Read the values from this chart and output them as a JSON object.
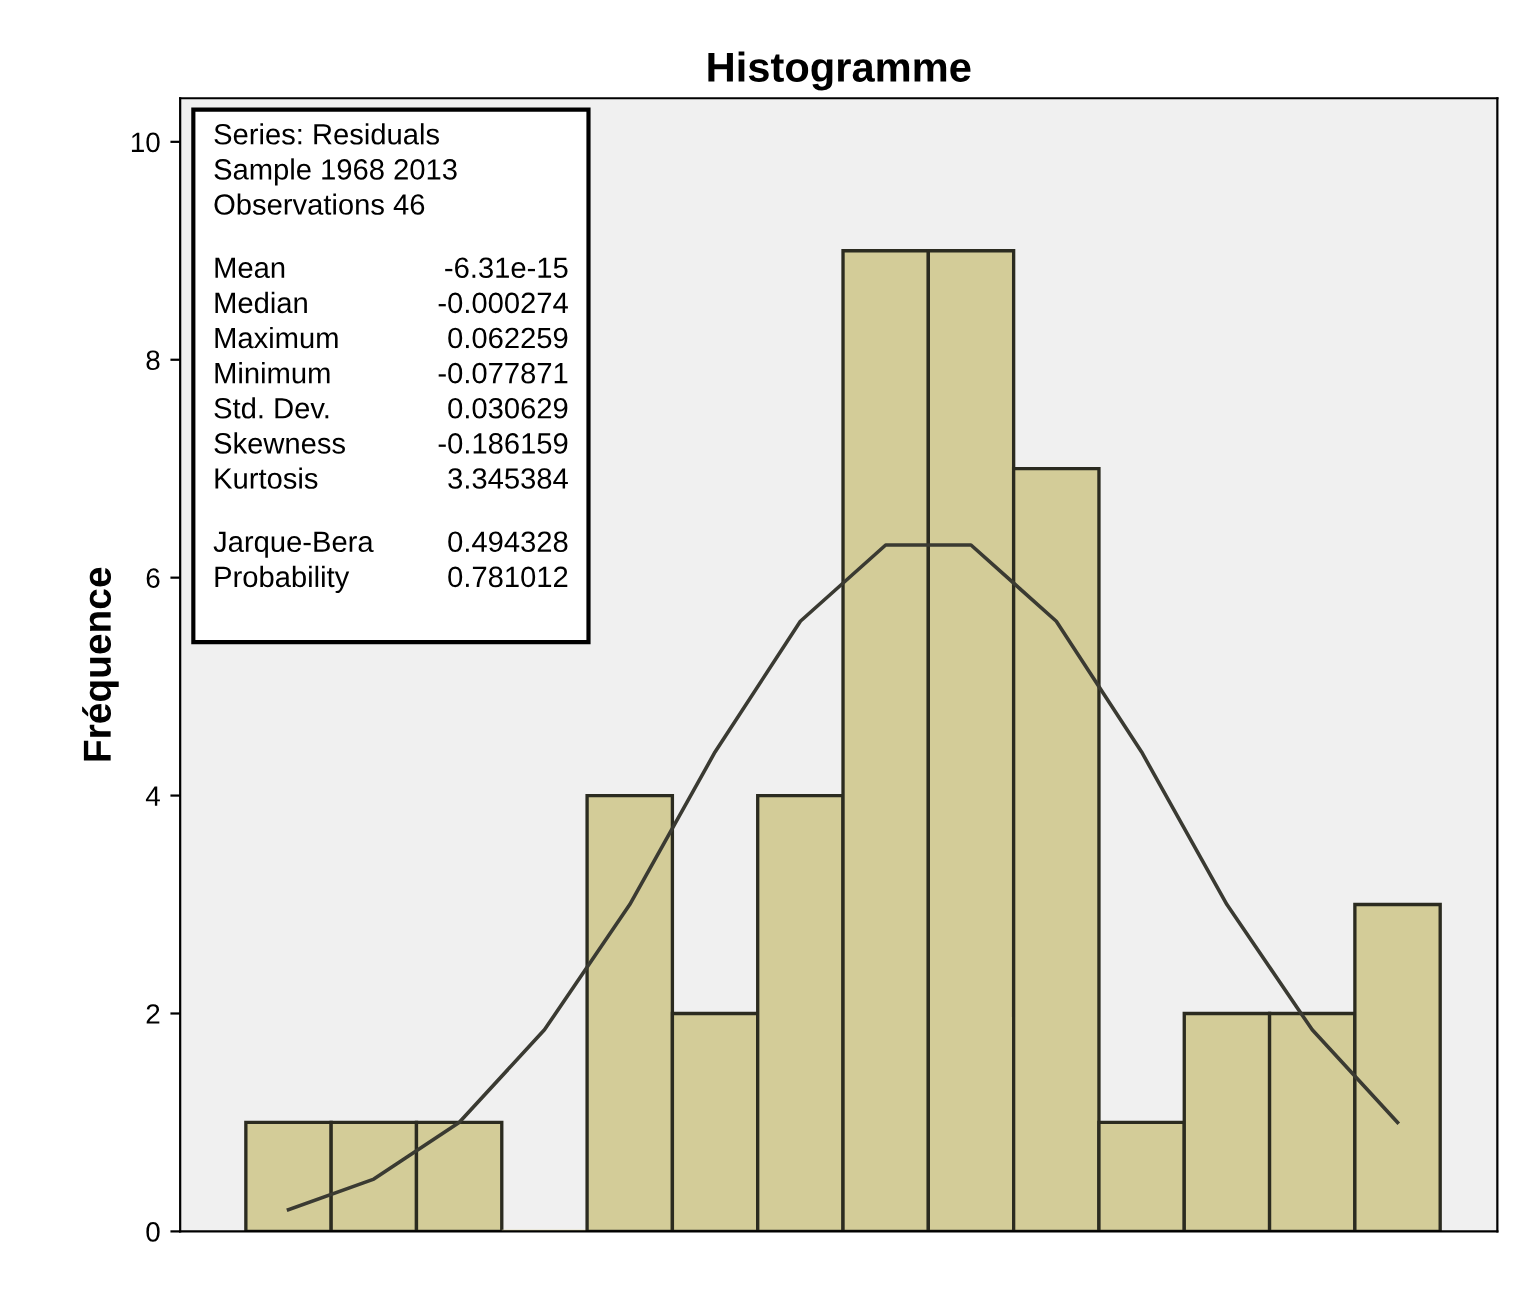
{
  "chart_data": {
    "type": "bar",
    "title": "Histogramme",
    "ylabel": "Fréquence",
    "categories": [
      null,
      null,
      null,
      null,
      null,
      null,
      null,
      null,
      null,
      null,
      null,
      null,
      null,
      null
    ],
    "series": [
      {
        "color": "#d3cc98",
        "values": [
          1,
          1,
          1,
          0,
          4,
          2,
          4,
          9,
          9,
          7,
          1,
          2,
          2,
          3
        ]
      },
      {
        "type": "line",
        "color": "#3a3a32",
        "values": [
          0.2,
          0.48,
          1.0,
          1.85,
          3.0,
          4.4,
          5.6,
          6.3,
          6.3,
          5.6,
          4.4,
          3.0,
          1.85,
          1.0
        ]
      }
    ],
    "ylim": [
      0,
      10.4
    ],
    "yticks": [
      0,
      2,
      4,
      6,
      8,
      10
    ],
    "grid": false,
    "legend": false,
    "line_style": "solid",
    "marker": "none",
    "annotations": [
      "Series: Residuals",
      "Sample 1968 2013",
      "Observations 46",
      "Mean",
      "-6.31e-15",
      "Median",
      "-0.000274",
      "Maximum",
      "0.062259",
      "Minimum",
      "-0.077871",
      "Std. Dev.",
      "0.030629",
      "Skewness",
      "-0.186159",
      "Kurtosis",
      "3.345384",
      "Jarque-Bera",
      "0.494328",
      "Probability",
      "0.781012"
    ]
  }
}
